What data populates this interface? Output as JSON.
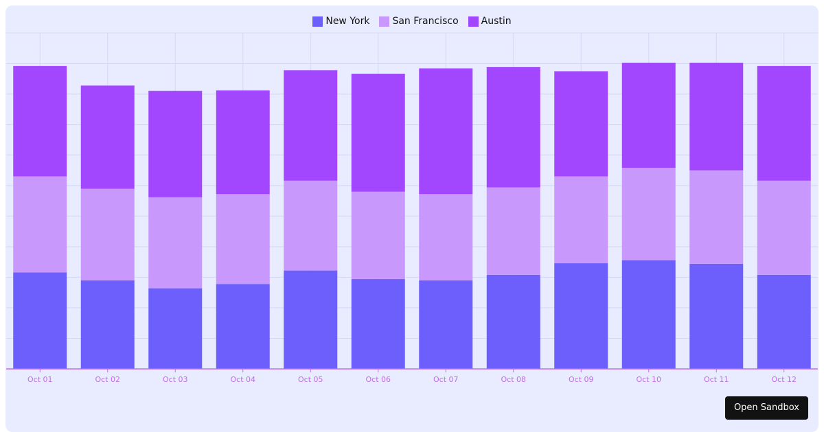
{
  "chart_data": {
    "type": "bar",
    "stacked": true,
    "categories": [
      "Oct 01",
      "Oct 02",
      "Oct 03",
      "Oct 04",
      "Oct 05",
      "Oct 06",
      "Oct 07",
      "Oct 08",
      "Oct 09",
      "Oct 10",
      "Oct 11",
      "Oct 12"
    ],
    "series": [
      {
        "name": "New York",
        "color": "#6c5ffc",
        "values": [
          158,
          145,
          132,
          139,
          161,
          147,
          145,
          154,
          173,
          178,
          172,
          154
        ]
      },
      {
        "name": "San Francisco",
        "color": "#c898fd",
        "values": [
          157,
          150,
          149,
          147,
          147,
          143,
          141,
          143,
          142,
          151,
          153,
          154
        ]
      },
      {
        "name": "Austin",
        "color": "#a247fe",
        "values": [
          181,
          169,
          174,
          170,
          181,
          193,
          206,
          197,
          172,
          172,
          176,
          188
        ]
      }
    ],
    "ylim": [
      0,
      550
    ],
    "grid": true,
    "legend_position": "top-center",
    "axis_color": "#c06ee6"
  },
  "button": {
    "label": "Open Sandbox"
  }
}
